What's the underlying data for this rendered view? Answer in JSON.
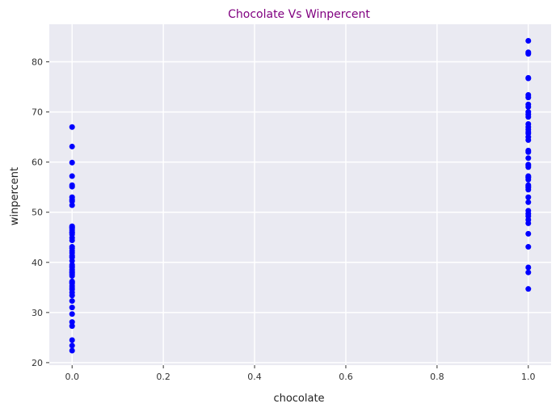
{
  "chart_data": {
    "type": "scatter",
    "title": "Chocolate Vs Winpercent",
    "title_color": "#800080",
    "xlabel": "chocolate",
    "ylabel": "winpercent",
    "xlim": [
      -0.05,
      1.05
    ],
    "ylim": [
      19.5,
      87.5
    ],
    "xticks": [
      "0.0",
      "0.2",
      "0.4",
      "0.6",
      "0.8",
      "1.0"
    ],
    "xtick_values": [
      0,
      0.2,
      0.4,
      0.6,
      0.8,
      1.0
    ],
    "yticks": [
      "20",
      "30",
      "40",
      "50",
      "60",
      "70",
      "80"
    ],
    "ytick_values": [
      20,
      30,
      40,
      50,
      60,
      70,
      80
    ],
    "grid": true,
    "background_color": "#eaeaf2",
    "grid_color": "#ffffff",
    "marker_color": "#0000ff",
    "series": [
      {
        "x": [
          0,
          0,
          0,
          0,
          0,
          0,
          0,
          0,
          0,
          0,
          0,
          0,
          0,
          0,
          0,
          0,
          0,
          0,
          0,
          0,
          0,
          0,
          0,
          0,
          0,
          0,
          0,
          0,
          0,
          0,
          0,
          0,
          0,
          0,
          0,
          0,
          0,
          0,
          0,
          0,
          0,
          0,
          0,
          0,
          0,
          0,
          0,
          0,
          0,
          0,
          1,
          1,
          1,
          1,
          1,
          1,
          1,
          1,
          1,
          1,
          1,
          1,
          1,
          1,
          1,
          1,
          1,
          1,
          1,
          1,
          1,
          1,
          1,
          1,
          1,
          1,
          1,
          1,
          1,
          1,
          1,
          1,
          1,
          1,
          1,
          1,
          1,
          1,
          1,
          1,
          1,
          1,
          1,
          1,
          1
        ],
        "y": [
          67.0,
          63.1,
          59.9,
          57.2,
          55.4,
          55.1,
          53.0,
          52.5,
          52.2,
          51.4,
          47.2,
          46.8,
          46.4,
          46.0,
          45.6,
          44.4,
          43.1,
          42.3,
          41.9,
          41.3,
          39.5,
          39.0,
          38.5,
          37.9,
          37.3,
          36.0,
          35.3,
          34.6,
          34.0,
          33.4,
          32.3,
          29.7,
          28.1,
          27.3,
          24.5,
          23.4,
          22.4,
          39.2,
          40.3,
          45.9,
          42.8,
          37.6,
          34.9,
          36.2,
          31.0,
          47.0,
          41.0,
          44.9,
          38.1,
          35.8,
          84.2,
          81.9,
          81.6,
          76.8,
          76.7,
          73.4,
          72.9,
          71.5,
          71.0,
          69.5,
          67.6,
          67.0,
          66.5,
          65.7,
          64.4,
          62.3,
          60.8,
          59.5,
          59.3,
          57.2,
          56.9,
          56.5,
          55.4,
          55.1,
          54.5,
          50.3,
          49.7,
          49.2,
          47.8,
          45.7,
          43.1,
          39.0,
          38.0,
          34.7,
          66.0,
          62.0,
          57.0,
          53.0,
          48.5,
          65.0,
          59.0,
          69.0,
          70.0,
          54.9,
          52.0
        ]
      }
    ]
  }
}
